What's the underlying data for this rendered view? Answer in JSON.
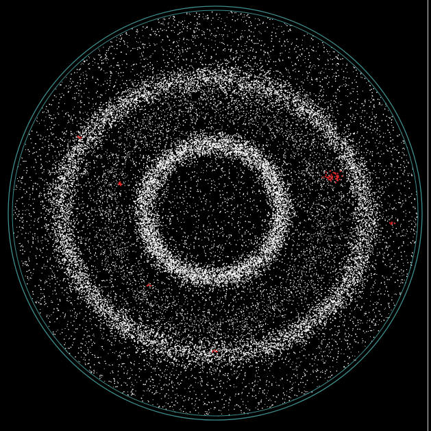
{
  "image": {
    "subject": "circular-particle-field",
    "background_color": "#000000",
    "particle_color": "#ffffff",
    "highlight_color": "#e0282a",
    "boundary_color": "#3f8f8f",
    "edge_line_color": "#d8d8d8"
  }
}
